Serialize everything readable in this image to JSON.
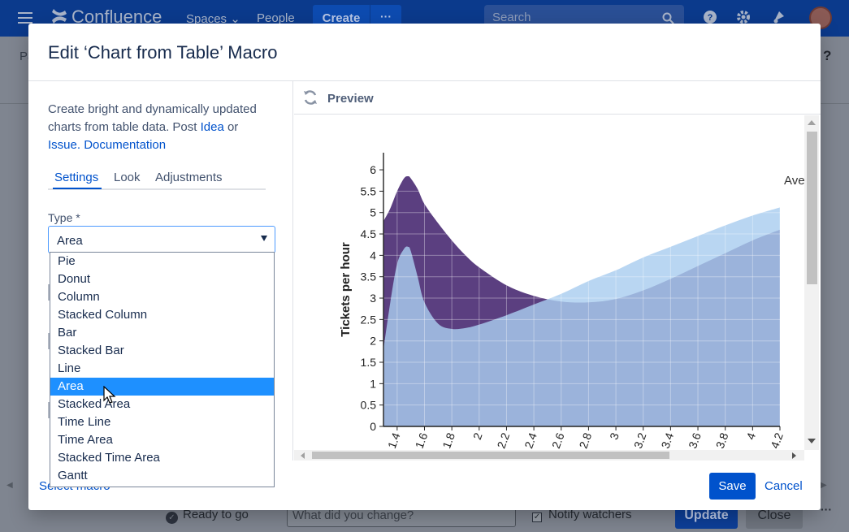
{
  "app": {
    "logo_text": "Confluence",
    "nav_spaces": "Spaces",
    "nav_people": "People",
    "create_label": "Create",
    "search_placeholder": "Search"
  },
  "page": {
    "title_fragment": "Pa",
    "ready_label": "Ready to go",
    "change_placeholder": "What did you change?",
    "notify_label": "Notify watchers",
    "update_label": "Update",
    "close_label": "Close"
  },
  "modal": {
    "title": "Edit ‘Chart from Table’ Macro",
    "description_text": "Create bright and dynamically updated charts from table data. Post ",
    "idea_link": "Idea",
    "or_text": " or ",
    "issue_link": "Issue.",
    "documentation_link": "Documentation",
    "tabs": [
      {
        "label": "Settings",
        "active": true
      },
      {
        "label": "Look",
        "active": false
      },
      {
        "label": "Adjustments",
        "active": false
      }
    ],
    "type_label": "Type *",
    "type_value": "Area",
    "type_options": [
      "Pie",
      "Donut",
      "Column",
      "Stacked Column",
      "Bar",
      "Stacked Bar",
      "Line",
      "Area",
      "Stacked Area",
      "Time Line",
      "Time Area",
      "Stacked Time Area",
      "Gantt"
    ],
    "selected_option": "Area",
    "select_macro_link": "Select macro",
    "save_label": "Save",
    "cancel_label": "Cancel",
    "preview_label": "Preview",
    "legend_partial": "Ave"
  },
  "colors": {
    "brand_blue": "#0052cc",
    "header_blue": "#0b3a8c",
    "dropdown_highlight": "#1e90ff",
    "series_dark": "#5b3f80",
    "series_mid": "#7aa3d4",
    "series_light": "#a9cdef"
  },
  "chart_data": {
    "type": "area",
    "ylabel": "Tickets per hour",
    "ylim": [
      0,
      6.4
    ],
    "yticks": [
      "0",
      "0.5",
      "1",
      "1.5",
      "2",
      "2.5",
      "3",
      "3.5",
      "4",
      "4.5",
      "5",
      "5.5",
      "6"
    ],
    "xlim": [
      1.3,
      4.2
    ],
    "xticks": [
      "1.4",
      "1.6",
      "1.8",
      "2",
      "2.2",
      "2.4",
      "2.6",
      "2.8",
      "3",
      "3.2",
      "3.4",
      "3.6",
      "3.8",
      "4",
      "4.2"
    ],
    "grid": true,
    "series": [
      {
        "color": "#5b3f80",
        "x": [
          1.3,
          1.35,
          1.4,
          1.45,
          1.48,
          1.5,
          1.55,
          1.6,
          1.7,
          1.8,
          1.9,
          2.0,
          2.2,
          2.4,
          2.6,
          2.8,
          3.0,
          3.2,
          3.4,
          3.6,
          3.8,
          4.0,
          4.2
        ],
        "y": [
          4.8,
          5.1,
          5.5,
          5.8,
          5.85,
          5.8,
          5.55,
          5.2,
          4.75,
          4.35,
          4.0,
          3.72,
          3.3,
          3.05,
          2.92,
          2.9,
          2.98,
          3.18,
          3.45,
          3.75,
          4.05,
          4.35,
          4.6
        ]
      },
      {
        "color": "#a9cdef",
        "x": [
          1.3,
          1.35,
          1.4,
          1.45,
          1.48,
          1.5,
          1.55,
          1.6,
          1.7,
          1.8,
          1.9,
          2.0,
          2.2,
          2.4,
          2.6,
          2.8,
          3.0,
          3.2,
          3.4,
          3.6,
          3.8,
          4.0,
          4.2
        ],
        "y": [
          1.8,
          2.9,
          3.8,
          4.15,
          4.2,
          4.1,
          3.5,
          2.9,
          2.4,
          2.28,
          2.3,
          2.38,
          2.6,
          2.85,
          3.1,
          3.4,
          3.65,
          3.95,
          4.2,
          4.45,
          4.7,
          4.93,
          5.12
        ]
      }
    ]
  }
}
